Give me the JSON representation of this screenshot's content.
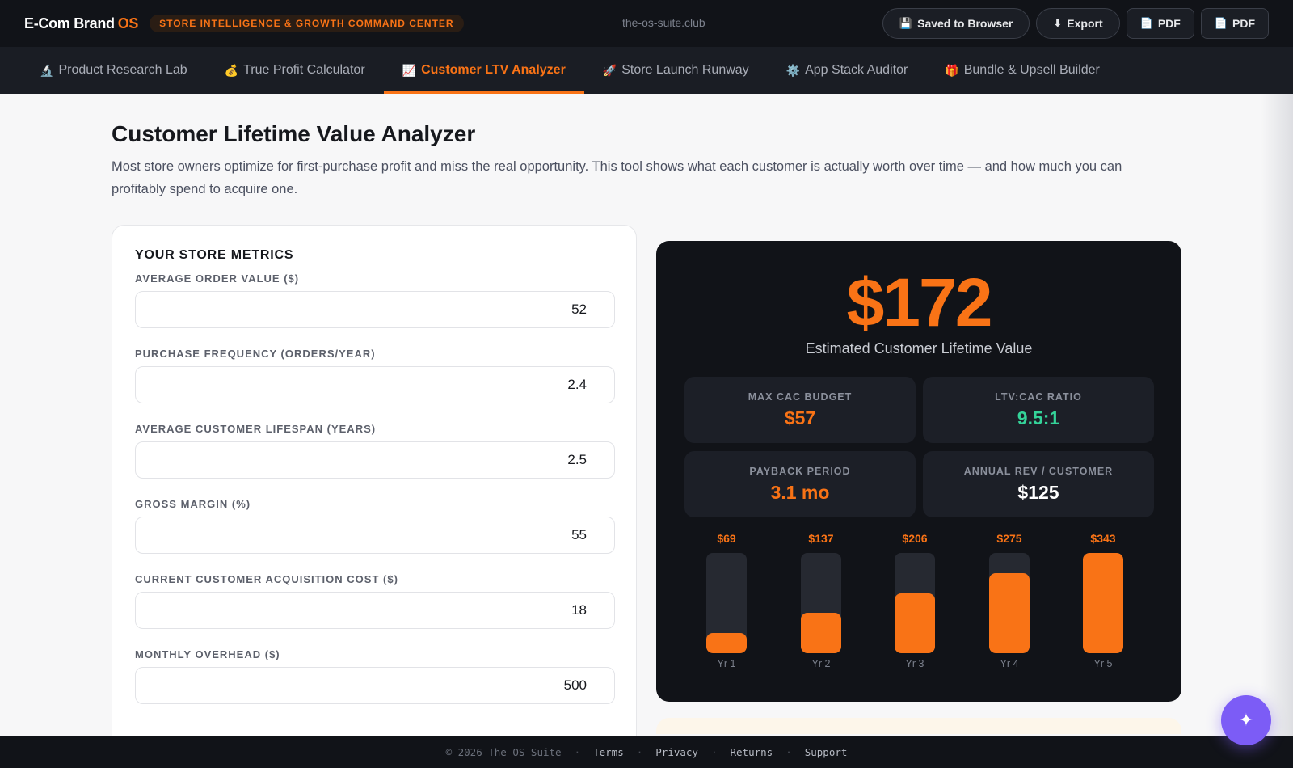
{
  "header": {
    "brand_name": "E-Com Brand",
    "brand_suffix": "OS",
    "tagline": "STORE INTELLIGENCE & GROWTH COMMAND CENTER",
    "domain": "the-os-suite.club",
    "actions": [
      {
        "icon": "💾",
        "icon_name": "floppy-disk-icon",
        "label": "Saved to Browser"
      },
      {
        "icon": "⬇",
        "icon_name": "download-icon",
        "label": "Export"
      },
      {
        "icon": "📄",
        "icon_name": "document-icon",
        "label": "PDF"
      },
      {
        "icon": "📄",
        "icon_name": "document-icon",
        "label": "PDF"
      }
    ]
  },
  "nav": {
    "tabs": [
      {
        "icon": "🔬",
        "icon_name": "microscope-icon",
        "label": "Product Research Lab",
        "active": false
      },
      {
        "icon": "💰",
        "icon_name": "money-bag-icon",
        "label": "True Profit Calculator",
        "active": false
      },
      {
        "icon": "📈",
        "icon_name": "chart-up-icon",
        "label": "Customer LTV Analyzer",
        "active": true
      },
      {
        "icon": "🚀",
        "icon_name": "rocket-icon",
        "label": "Store Launch Runway",
        "active": false
      },
      {
        "icon": "⚙️",
        "icon_name": "gear-icon",
        "label": "App Stack Auditor",
        "active": false
      },
      {
        "icon": "🎁",
        "icon_name": "gift-icon",
        "label": "Bundle & Upsell Builder",
        "active": false
      }
    ]
  },
  "main": {
    "title": "Customer Lifetime Value Analyzer",
    "description": "Most store owners optimize for first-purchase profit and miss the real opportunity. This tool shows what each customer is actually worth over time — and how much you can profitably spend to acquire one."
  },
  "metrics": {
    "title": "YOUR STORE METRICS",
    "fields": [
      {
        "label": "AVERAGE ORDER VALUE ($)",
        "value": "52"
      },
      {
        "label": "PURCHASE FREQUENCY (ORDERS/YEAR)",
        "value": "2.4"
      },
      {
        "label": "AVERAGE CUSTOMER LIFESPAN (YEARS)",
        "value": "2.5"
      },
      {
        "label": "GROSS MARGIN (%)",
        "value": "55"
      },
      {
        "label": "CURRENT CUSTOMER ACQUISITION COST ($)",
        "value": "18"
      },
      {
        "label": "MONTHLY OVERHEAD ($)",
        "value": "500"
      }
    ]
  },
  "results": {
    "ltv": "$172",
    "ltv_caption": "Estimated Customer Lifetime Value",
    "stats": [
      {
        "label": "MAX CAC BUDGET",
        "value": "$57",
        "color": "#f97316"
      },
      {
        "label": "LTV:CAC RATIO",
        "value": "9.5:1",
        "color": "#34d399"
      },
      {
        "label": "PAYBACK PERIOD",
        "value": "3.1 mo",
        "color": "#f97316"
      },
      {
        "label": "ANNUAL REV / CUSTOMER",
        "value": "$125",
        "color": "#ffffff"
      }
    ]
  },
  "chart_data": {
    "type": "bar",
    "categories": [
      "Yr 1",
      "Yr 2",
      "Yr 3",
      "Yr 4",
      "Yr 5"
    ],
    "values": [
      69,
      137,
      206,
      275,
      343
    ],
    "value_labels": [
      "$69",
      "$137",
      "$206",
      "$275",
      "$343"
    ],
    "ylim": [
      0,
      343
    ],
    "grid": false,
    "bar_color": "#f97316",
    "track_color": "#262931"
  },
  "footer": {
    "copyright": "© 2026 The OS Suite",
    "separator": "·",
    "links": [
      "Terms",
      "Privacy",
      "Returns",
      "Support"
    ]
  },
  "fab": {
    "icon": "✦",
    "icon_name": "sparkle-icon"
  },
  "colors": {
    "accent": "#f97316",
    "success": "#34d399",
    "fab": "#7c5cf6",
    "dark": "#111318"
  }
}
